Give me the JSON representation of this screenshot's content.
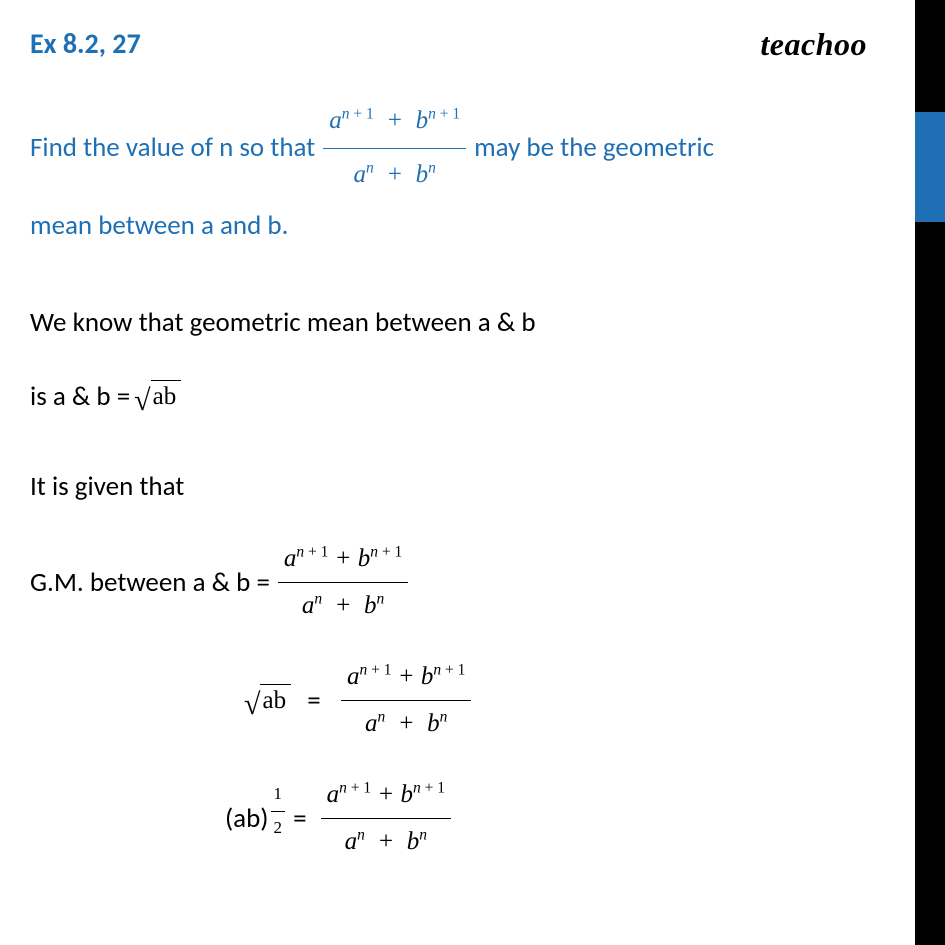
{
  "colors": {
    "accent": "#1f6fb5",
    "text": "#000000",
    "bg": "#ffffff"
  },
  "typography": {
    "body_fontsize": 27,
    "header_fontsize": 28,
    "brand_fontsize": 32
  },
  "header": {
    "exercise_label": "Ex 8.2, 27",
    "brand": "teachoo"
  },
  "question": {
    "part1": "Find the value of n so  that ",
    "fraction": {
      "numerator_html": "<span class='mi'>a</span><sup><span class='mi'>n</span> <span class='upr'>+ 1</span></sup>&nbsp; + &nbsp;<span class='mi'>b</span><sup><span class='mi'>n</span> <span class='upr'>+ 1</span></sup>",
      "denominator_html": "<span class='mi'>a</span><sup><span class='mi'>n</span></sup>&nbsp; + &nbsp;<span class='mi'>b</span><sup><span class='mi'>n</span></sup>"
    },
    "part2": " may be the geometric",
    "line2": "mean between a and b."
  },
  "body": {
    "line1": "We know that geometric mean between a & b",
    "line2_pre": "is a & b =  ",
    "sqrt_ab": "ab",
    "line3": "It is given that",
    "line4_pre": "G.M. between a & b = ",
    "eq_fraction": {
      "numerator_html": "<span class='mi'>a</span><sup><span class='mi'>n</span> <span class='upr'>+ 1</span></sup> + <span class='mi'>b</span><sup><span class='mi'>n</span> <span class='upr'>+ 1</span></sup>",
      "denominator_html": "<span class='mi'>a</span><sup><span class='mi'>n</span></sup>&nbsp; + &nbsp;<span class='mi'>b</span><sup><span class='mi'>n</span></sup>"
    },
    "line5_sqrt": "ab",
    "line5_eq": "  =  ",
    "line6_base": "(ab)",
    "line6_exp_num": "1",
    "line6_exp_den": "2",
    "line6_eq": " = "
  }
}
